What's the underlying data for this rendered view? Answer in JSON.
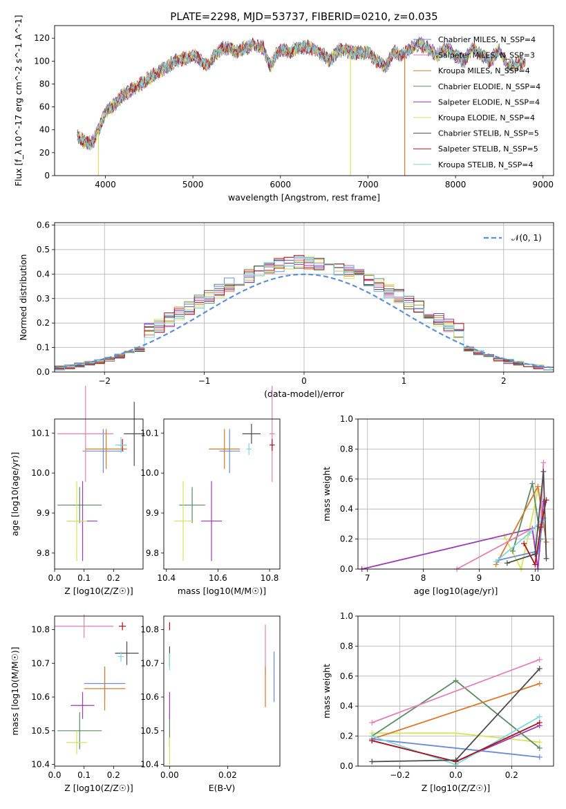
{
  "figure_title": "PLATE=2298, MJD=53737, FIBERID=0210, z=0.035",
  "legend_names": [
    "Chabrier MILES, N$_{SSP}$=4",
    "Salpeter MILES, N$_{SSP}$=3",
    "Kroupa MILES, N$_{SSP}$=4",
    "Chabrier ELODIE, N$_{SSP}$=4",
    "Salpeter ELODIE, N$_{SSP}$=4",
    "Kroupa ELODIE, N$_{SSP}$=4",
    "Chabrier STELIB, N$_{SSP}$=5",
    "Salpeter STELIB, N$_{SSP}$=5",
    "Kroupa STELIB, N$_{SSP}$=4"
  ],
  "legend_display": [
    "Chabrier MILES, N_SSP=4",
    "Salpeter MILES, N_SSP=3",
    "Kroupa MILES, N_SSP=4",
    "Chabrier ELODIE, N_SSP=4",
    "Salpeter ELODIE, N_SSP=4",
    "Kroupa ELODIE, N_SSP=4",
    "Chabrier STELIB, N_SSP=5",
    "Salpeter STELIB, N_SSP=5",
    "Kroupa STELIB, N_SSP=4"
  ],
  "series_colors": [
    "#6a8ad8",
    "#e27fb8",
    "#d9782b",
    "#5b8a5e",
    "#9a39b5",
    "#d6e35b",
    "#4a4a4a",
    "#a8141c",
    "#7fd6dc"
  ],
  "chart_data": [
    {
      "id": "spectrum",
      "type": "line",
      "title": "PLATE=2298, MJD=53737, FIBERID=0210, z=0.035",
      "xlabel": "wavelength [Angstrom, rest frame]",
      "ylabel": "Flux [f_λ 10^-17 erg cm^-2 s^-1 A^-1]",
      "xlim": [
        3420,
        9120
      ],
      "ylim": [
        0,
        131
      ],
      "xticks": [
        4000,
        5000,
        6000,
        7000,
        8000,
        9000
      ],
      "yticks": [
        0,
        20,
        40,
        60,
        80,
        100,
        120
      ],
      "grid": false,
      "legend_loc": "upper right",
      "x": [
        3680,
        3750,
        3850,
        3950,
        4000,
        4100,
        4200,
        4300,
        4400,
        4500,
        4600,
        4700,
        4800,
        4900,
        5000,
        5100,
        5170,
        5250,
        5350,
        5450,
        5500,
        5600,
        5700,
        5800,
        5890,
        5950,
        6000,
        6100,
        6200,
        6300,
        6400,
        6500,
        6560,
        6650,
        6700,
        6800,
        6900,
        7000,
        7100,
        7200,
        7300,
        7400,
        7500,
        7600,
        7700,
        7800,
        7900,
        8000,
        8100,
        8200,
        8300,
        8400,
        8500,
        8600,
        8700,
        8800
      ],
      "y": [
        35,
        30,
        28,
        45,
        55,
        62,
        70,
        75,
        80,
        85,
        90,
        95,
        100,
        102,
        105,
        100,
        95,
        105,
        112,
        110,
        108,
        112,
        114,
        112,
        95,
        105,
        110,
        108,
        112,
        112,
        110,
        105,
        100,
        108,
        110,
        108,
        107,
        108,
        100,
        95,
        108,
        105,
        112,
        115,
        110,
        105,
        112,
        105,
        100,
        112,
        105,
        100,
        110,
        95,
        98,
        100
      ],
      "drop_lines": [
        {
          "series": 5,
          "x": 3920
        },
        {
          "series": 5,
          "x": 6800
        },
        {
          "series": 2,
          "x": 7420
        }
      ]
    },
    {
      "id": "residuals",
      "type": "histogram",
      "xlabel": "(data-model)/error",
      "ylabel": "Normed distribution",
      "xlim": [
        -2.5,
        2.5
      ],
      "ylim": [
        0,
        0.61
      ],
      "xticks": [
        -2,
        -1,
        0,
        1,
        2
      ],
      "yticks": [
        0.0,
        0.1,
        0.2,
        0.3,
        0.4,
        0.5,
        0.6
      ],
      "grid": true,
      "bin_width": 0.1,
      "bin_start": -2.5,
      "gaussian_label": "𝒩(0, 1)",
      "legend_loc": "upper right"
    },
    {
      "id": "z_age",
      "type": "errorbar",
      "xlabel": "Z [log10(Z/Z☉)]",
      "ylabel": "age  [log10(age/yr)]",
      "xlim": [
        0.0,
        0.3
      ],
      "ylim": [
        9.76,
        10.135
      ],
      "xticks": [
        0.0,
        0.1,
        0.2
      ],
      "yticks": [
        9.8,
        9.9,
        10.0,
        10.1
      ],
      "points": [
        {
          "series": 0,
          "x": 0.165,
          "y": 10.055,
          "xerr": 0.07,
          "yerr": 0.055
        },
        {
          "series": 1,
          "x": 0.105,
          "y": 10.098,
          "xerr": 0.095,
          "yerr": 0.12
        },
        {
          "series": 2,
          "x": 0.175,
          "y": 10.06,
          "xerr": 0.07,
          "yerr": 0.05
        },
        {
          "series": 3,
          "x": 0.085,
          "y": 9.92,
          "xerr": 0.075,
          "yerr": 0.045
        },
        {
          "series": 4,
          "x": 0.095,
          "y": 9.88,
          "xerr": 0.05,
          "yerr": 0.1
        },
        {
          "series": 5,
          "x": 0.075,
          "y": 9.88,
          "xerr": 0.035,
          "yerr": 0.1
        },
        {
          "series": 6,
          "x": 0.27,
          "y": 10.098,
          "xerr": 0.035,
          "yerr": 0.08
        },
        {
          "series": 7,
          "x": 0.23,
          "y": 10.07,
          "xerr": 0.015,
          "yerr": 0.015
        },
        {
          "series": 8,
          "x": 0.225,
          "y": 10.07,
          "xerr": 0.02,
          "yerr": 0.02
        }
      ]
    },
    {
      "id": "mass_age",
      "type": "errorbar",
      "xlabel": "mass [log10(M/M☉)]",
      "ylabel": "",
      "xlim": [
        10.39,
        10.84
      ],
      "ylim": [
        9.76,
        10.135
      ],
      "xticks": [
        10.4,
        10.6,
        10.8
      ],
      "yticks": [
        9.8,
        9.9,
        10.0,
        10.1
      ],
      "points": [
        {
          "series": 0,
          "x": 10.645,
          "y": 10.055,
          "xerr": 0.04,
          "yerr": 0.055
        },
        {
          "series": 1,
          "x": 10.81,
          "y": 10.098,
          "xerr": 0.01,
          "yerr": 0.12
        },
        {
          "series": 2,
          "x": 10.625,
          "y": 10.06,
          "xerr": 0.06,
          "yerr": 0.05
        },
        {
          "series": 3,
          "x": 10.5,
          "y": 9.92,
          "xerr": 0.05,
          "yerr": 0.045
        },
        {
          "series": 4,
          "x": 10.575,
          "y": 9.88,
          "xerr": 0.04,
          "yerr": 0.1
        },
        {
          "series": 5,
          "x": 10.465,
          "y": 9.88,
          "xerr": 0.035,
          "yerr": 0.1
        },
        {
          "series": 6,
          "x": 10.73,
          "y": 10.098,
          "xerr": 0.035,
          "yerr": 0.025
        },
        {
          "series": 7,
          "x": 10.81,
          "y": 10.07,
          "xerr": 0.01,
          "yerr": 0.015
        },
        {
          "series": 8,
          "x": 10.72,
          "y": 10.06,
          "xerr": 0.01,
          "yerr": 0.015
        }
      ]
    },
    {
      "id": "age_weight",
      "type": "line",
      "xlabel": "age  [log10(age/yr)]",
      "ylabel": "mass weight",
      "xlim": [
        6.83,
        10.33
      ],
      "ylim": [
        0.0,
        1.0
      ],
      "xticks": [
        7,
        8,
        9,
        10
      ],
      "yticks": [
        0.0,
        0.2,
        0.4,
        0.6,
        0.8,
        1.0
      ],
      "grid": true,
      "series": [
        {
          "series": 0,
          "x": [
            9.35,
            10.05,
            10.15
          ],
          "y": [
            0.06,
            0.12,
            0.34
          ]
        },
        {
          "series": 1,
          "x": [
            8.6,
            10.1,
            10.15
          ],
          "y": [
            0.0,
            0.3,
            0.71
          ]
        },
        {
          "series": 2,
          "x": [
            9.3,
            10.05,
            10.2
          ],
          "y": [
            0.03,
            0.55,
            0.18
          ]
        },
        {
          "series": 3,
          "x": [
            9.6,
            9.95,
            10.1
          ],
          "y": [
            0.12,
            0.57,
            0.2
          ]
        },
        {
          "series": 4,
          "x": [
            6.9,
            9.95,
            10.05,
            10.15
          ],
          "y": [
            0.0,
            0.27,
            0.0,
            0.45
          ]
        },
        {
          "series": 5,
          "x": [
            9.45,
            9.75,
            10.05
          ],
          "y": [
            0.22,
            0.0,
            0.53
          ]
        },
        {
          "series": 6,
          "x": [
            9.5,
            10.0,
            10.15,
            10.2
          ],
          "y": [
            0.04,
            0.1,
            0.65,
            0.07
          ]
        },
        {
          "series": 7,
          "x": [
            9.8,
            10.0,
            10.1,
            10.2
          ],
          "y": [
            0.17,
            0.03,
            0.28,
            0.46
          ]
        },
        {
          "series": 8,
          "x": [
            9.3,
            9.9,
            10.1
          ],
          "y": [
            0.05,
            0.24,
            0.32
          ]
        }
      ]
    },
    {
      "id": "z_mass",
      "type": "errorbar",
      "xlabel": "Z [log10(Z/Z☉)]",
      "ylabel": "mass [log10(M/M☉)]",
      "xlim": [
        0.0,
        0.3
      ],
      "ylim": [
        10.395,
        10.84
      ],
      "xticks": [
        0.0,
        0.1,
        0.2
      ],
      "yticks": [
        10.4,
        10.5,
        10.6,
        10.7,
        10.8
      ],
      "points": [
        {
          "series": 0,
          "x": 0.17,
          "y": 10.64,
          "xerr": 0.07,
          "yerr": 0.05
        },
        {
          "series": 1,
          "x": 0.1,
          "y": 10.81,
          "xerr": 0.1,
          "yerr": 0.035
        },
        {
          "series": 2,
          "x": 0.17,
          "y": 10.625,
          "xerr": 0.07,
          "yerr": 0.065
        },
        {
          "series": 3,
          "x": 0.085,
          "y": 10.5,
          "xerr": 0.075,
          "yerr": 0.055
        },
        {
          "series": 4,
          "x": 0.095,
          "y": 10.575,
          "xerr": 0.04,
          "yerr": 0.04
        },
        {
          "series": 5,
          "x": 0.075,
          "y": 10.465,
          "xerr": 0.035,
          "yerr": 0.035
        },
        {
          "series": 6,
          "x": 0.245,
          "y": 10.73,
          "xerr": 0.04,
          "yerr": 0.035
        },
        {
          "series": 7,
          "x": 0.23,
          "y": 10.81,
          "xerr": 0.012,
          "yerr": 0.012
        },
        {
          "series": 8,
          "x": 0.225,
          "y": 10.72,
          "xerr": 0.01,
          "yerr": 0.015
        }
      ]
    },
    {
      "id": "ebv_mass",
      "type": "errorbar",
      "xlabel": "E(B-V)",
      "ylabel": "",
      "xlim": [
        -0.002,
        0.038
      ],
      "ylim": [
        10.395,
        10.84
      ],
      "xticks": [
        0.0,
        0.02
      ],
      "yticks": [
        10.4,
        10.5,
        10.6,
        10.7,
        10.8
      ],
      "points": [
        {
          "series": 0,
          "x": 0.036,
          "y": 10.66,
          "xerr": 0.0,
          "yerr": 0.075
        },
        {
          "series": 1,
          "x": 0.033,
          "y": 10.74,
          "xerr": 0.0,
          "yerr": 0.075
        },
        {
          "series": 2,
          "x": 0.033,
          "y": 10.63,
          "xerr": 0.0,
          "yerr": 0.06
        },
        {
          "series": 3,
          "x": 0.0,
          "y": 10.5,
          "xerr": 0.0,
          "yerr": 0.05
        },
        {
          "series": 4,
          "x": 0.0,
          "y": 10.575,
          "xerr": 0.0,
          "yerr": 0.04
        },
        {
          "series": 5,
          "x": 0.0,
          "y": 10.44,
          "xerr": 0.0,
          "yerr": 0.04
        },
        {
          "series": 6,
          "x": 0.0,
          "y": 10.72,
          "xerr": 0.0,
          "yerr": 0.03
        },
        {
          "series": 7,
          "x": 0.0,
          "y": 10.81,
          "xerr": 0.0,
          "yerr": 0.012
        },
        {
          "series": 8,
          "x": 0.0,
          "y": 10.705,
          "xerr": 0.0,
          "yerr": 0.025
        }
      ]
    },
    {
      "id": "z_weight",
      "type": "line",
      "xlabel": "Z [log10(Z/Z☉)]",
      "ylabel": "mass weight",
      "xlim": [
        -0.35,
        0.35
      ],
      "ylim": [
        0.0,
        1.0
      ],
      "xticks": [
        -0.2,
        0.0,
        0.2
      ],
      "yticks": [
        0.0,
        0.2,
        0.4,
        0.6,
        0.8,
        1.0
      ],
      "grid": true,
      "series": [
        {
          "series": 0,
          "x": [
            -0.3,
            0.3
          ],
          "y": [
            0.18,
            0.06
          ]
        },
        {
          "series": 1,
          "x": [
            -0.3,
            0.3
          ],
          "y": [
            0.29,
            0.71
          ]
        },
        {
          "series": 2,
          "x": [
            -0.3,
            0.3
          ],
          "y": [
            0.18,
            0.55
          ]
        },
        {
          "series": 3,
          "x": [
            -0.3,
            0.0,
            0.3
          ],
          "y": [
            0.2,
            0.57,
            0.12
          ]
        },
        {
          "series": 4,
          "x": [
            -0.3,
            0.0,
            0.3
          ],
          "y": [
            0.17,
            0.03,
            0.27
          ]
        },
        {
          "series": 5,
          "x": [
            -0.3,
            0.0,
            0.3
          ],
          "y": [
            0.22,
            0.22,
            0.16
          ]
        },
        {
          "series": 6,
          "x": [
            -0.3,
            0.0,
            0.3
          ],
          "y": [
            0.03,
            0.04,
            0.65
          ]
        },
        {
          "series": 7,
          "x": [
            -0.3,
            0.0,
            0.3
          ],
          "y": [
            0.17,
            0.03,
            0.29
          ]
        },
        {
          "series": 8,
          "x": [
            -0.3,
            0.0,
            0.3
          ],
          "y": [
            0.2,
            0.01,
            0.33
          ]
        }
      ]
    }
  ]
}
